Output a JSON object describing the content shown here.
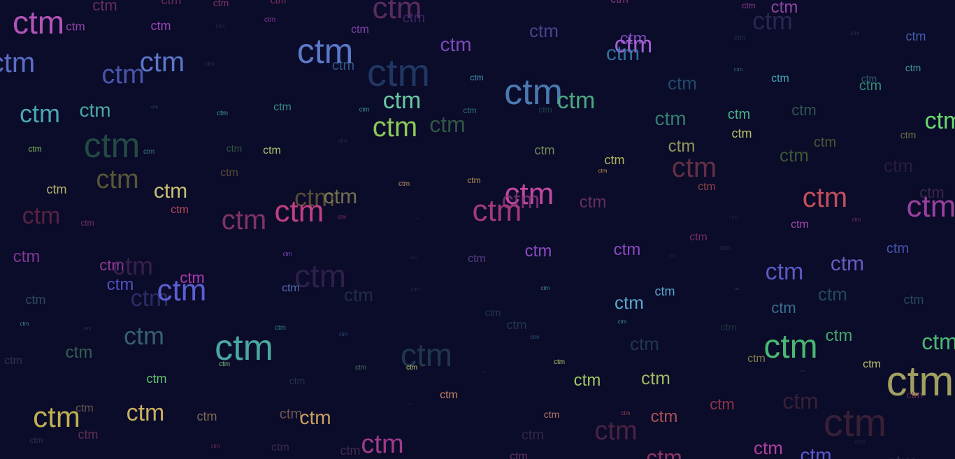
{
  "word": "ctm",
  "colors": {
    "background": "#0b0b2a"
  }
}
